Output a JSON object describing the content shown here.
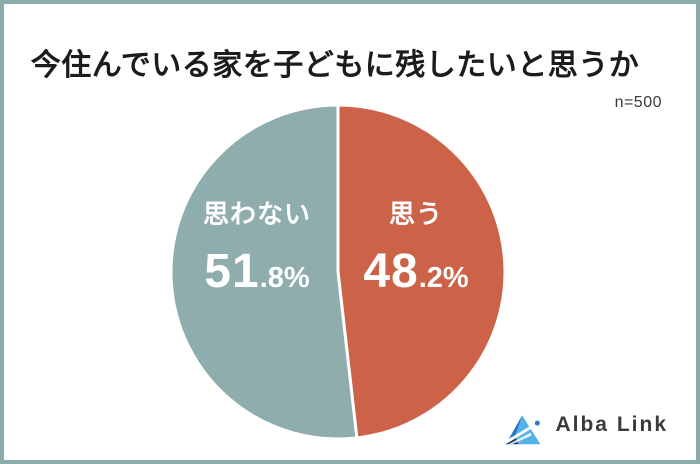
{
  "page": {
    "title": "今住んでいる家を子どもに残したいと思うか",
    "sample_size_label": "n=500",
    "border_color": "#8caaaa",
    "background_color": "#ffffff"
  },
  "chart_data": {
    "type": "pie",
    "title": "今住んでいる家を子どもに残したいと思うか",
    "sample_size": "n=500",
    "start_angle_deg": 0,
    "direction": "clockwise",
    "divider_color": "#ffffff",
    "label_text_color": "#ffffff",
    "slices": [
      {
        "label": "思う",
        "value": 48.2,
        "value_main": "48",
        "value_sub": ".2%",
        "color": "#cc6247"
      },
      {
        "label": "思わない",
        "value": 51.8,
        "value_main": "51",
        "value_sub": ".8%",
        "color": "#8fadad"
      }
    ]
  },
  "logo": {
    "text": "Alba Link",
    "icon": "alba-link-triangle-logo",
    "icon_colors": {
      "dark_navy": "#16346e",
      "mid_blue": "#2e77c8",
      "light_blue": "#55b1e9"
    }
  }
}
